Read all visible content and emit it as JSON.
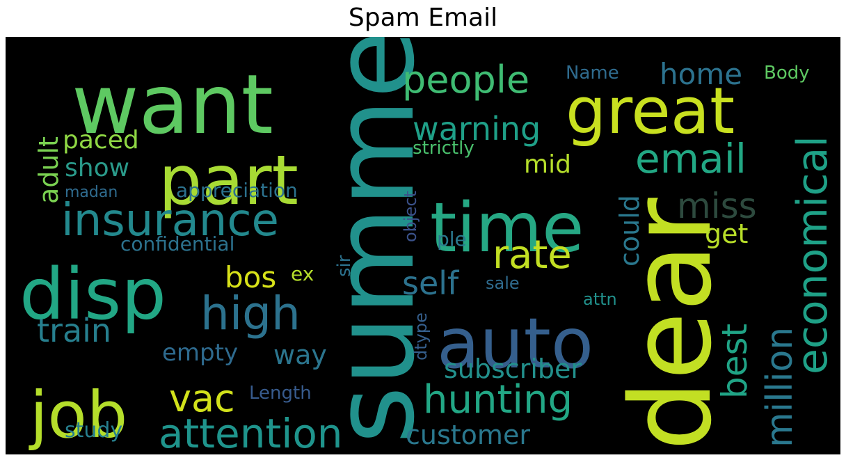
{
  "chart_data": {
    "type": "wordcloud",
    "title": "Spam Email",
    "background": "#000000",
    "colormap": "viridis",
    "words": [
      {
        "text": "want",
        "color": "#5ec962"
      },
      {
        "text": "summer",
        "color": "#21918c"
      },
      {
        "text": "dear",
        "color": "#c2df23"
      },
      {
        "text": "great",
        "color": "#c8e020"
      },
      {
        "text": "part",
        "color": "#a8db34"
      },
      {
        "text": "time",
        "color": "#26a884"
      },
      {
        "text": "disp",
        "color": "#22a785"
      },
      {
        "text": "auto",
        "color": "#355f8d"
      },
      {
        "text": "job",
        "color": "#b5de2b"
      },
      {
        "text": "insurance",
        "color": "#23898e"
      },
      {
        "text": "people",
        "color": "#3fbc73"
      },
      {
        "text": "email",
        "color": "#22a884"
      },
      {
        "text": "economical",
        "color": "#1fa187"
      },
      {
        "text": "high",
        "color": "#2c728e"
      },
      {
        "text": "hunting",
        "color": "#22a785"
      },
      {
        "text": "attention",
        "color": "#1f948c"
      },
      {
        "text": "rate",
        "color": "#c2df23"
      },
      {
        "text": "million",
        "color": "#2a788e"
      },
      {
        "text": "best",
        "color": "#20a486"
      },
      {
        "text": "miss",
        "color": "#2d4a3e"
      },
      {
        "text": "warning",
        "color": "#1fa088"
      },
      {
        "text": "vac",
        "color": "#d2e21b"
      },
      {
        "text": "train",
        "color": "#277f8e"
      },
      {
        "text": "self",
        "color": "#2c728e"
      },
      {
        "text": "home",
        "color": "#2c728e"
      },
      {
        "text": "subscriber",
        "color": "#22908c"
      },
      {
        "text": "customer",
        "color": "#2a788e"
      },
      {
        "text": "could",
        "color": "#2a788e"
      },
      {
        "text": "adult",
        "color": "#7ad151"
      },
      {
        "text": "bos",
        "color": "#d8e219"
      },
      {
        "text": "show",
        "color": "#2a9a8a"
      },
      {
        "text": "empty",
        "color": "#2e6a8e"
      },
      {
        "text": "way",
        "color": "#2b758e"
      },
      {
        "text": "paced",
        "color": "#8fd744"
      },
      {
        "text": "get",
        "color": "#b8de29"
      },
      {
        "text": "mid",
        "color": "#b5de2b"
      },
      {
        "text": "study",
        "color": "#277f8e"
      },
      {
        "text": "confidential",
        "color": "#2c728e"
      },
      {
        "text": "appreciation",
        "color": "#2c728e"
      },
      {
        "text": "strictly",
        "color": "#4ac16d"
      },
      {
        "text": "Length",
        "color": "#375b8d"
      },
      {
        "text": "Name",
        "color": "#2f6b8e"
      },
      {
        "text": "Body",
        "color": "#5ec962"
      },
      {
        "text": "madan",
        "color": "#2f6b8e"
      },
      {
        "text": "sir",
        "color": "#2c728e"
      },
      {
        "text": "ple",
        "color": "#2a788e"
      },
      {
        "text": "ex",
        "color": "#b5de2b"
      },
      {
        "text": "sale",
        "color": "#2f6b8e"
      },
      {
        "text": "attn",
        "color": "#21918c"
      },
      {
        "text": "object",
        "color": "#3b528b"
      },
      {
        "text": "dtype",
        "color": "#355f8d"
      }
    ]
  }
}
